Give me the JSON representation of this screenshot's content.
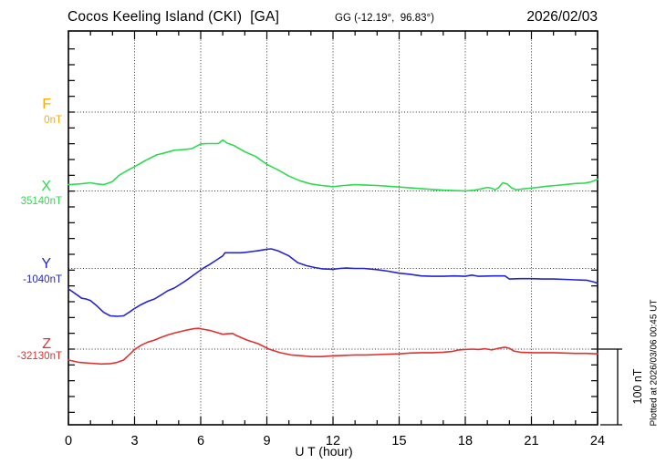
{
  "header": {
    "station_title": "Cocos Keeling Island (CKI)  [GA]",
    "gg_coordinates": "GG (-12.19°,  96.83°)",
    "date": "2026/02/03"
  },
  "x_axis": {
    "label": "U T (hour)",
    "tick_labels": [
      "0",
      "3",
      "6",
      "9",
      "12",
      "15",
      "18",
      "21",
      "24"
    ]
  },
  "scale_bar": {
    "label": "100 nT"
  },
  "plotted_at_note": "Plotted at 2026/03/06 00:45 UT",
  "chart_data": {
    "type": "line",
    "title": "Cocos Keeling Island (CKI)  [GA]",
    "date": "2026/02/03",
    "xlabel": "U T (hour)",
    "x_range": [
      0,
      24
    ],
    "x_tick_step_hours": 3,
    "y_scale": "100 nT per division",
    "grid": "dotted horizontal baseline per component, dotted vertical line every 3 hours",
    "series": [
      {
        "component": "F",
        "baseline_value": "0nT",
        "color": "#FFAA00",
        "points_delta_nT": []
      },
      {
        "component": "X",
        "baseline_value": "35140nT",
        "color": "#2EDB50",
        "points_delta_nT": [
          [
            0,
            8
          ],
          [
            0.5,
            9
          ],
          [
            1,
            10.5
          ],
          [
            1.3,
            9
          ],
          [
            1.6,
            8
          ],
          [
            2,
            12
          ],
          [
            2.3,
            20
          ],
          [
            2.6,
            25
          ],
          [
            3,
            31
          ],
          [
            3.5,
            39
          ],
          [
            4,
            46
          ],
          [
            4.3,
            48
          ],
          [
            4.8,
            52
          ],
          [
            5.3,
            53
          ],
          [
            5.6,
            54
          ],
          [
            6,
            60
          ],
          [
            6.3,
            60.5
          ],
          [
            6.8,
            60.5
          ],
          [
            7,
            65
          ],
          [
            7.2,
            61
          ],
          [
            7.5,
            58
          ],
          [
            8,
            50
          ],
          [
            8.5,
            44
          ],
          [
            9,
            34
          ],
          [
            9.5,
            27
          ],
          [
            10,
            19
          ],
          [
            10.5,
            13
          ],
          [
            11,
            9
          ],
          [
            11.5,
            7
          ],
          [
            12,
            5.5
          ],
          [
            12.5,
            7
          ],
          [
            13,
            8
          ],
          [
            13.5,
            7.5
          ],
          [
            14,
            7
          ],
          [
            14.5,
            6
          ],
          [
            15,
            5
          ],
          [
            15.5,
            4
          ],
          [
            16,
            3
          ],
          [
            16.5,
            2
          ],
          [
            17,
            1
          ],
          [
            17.5,
            0.5
          ],
          [
            18,
            0
          ],
          [
            18.4,
            1
          ],
          [
            18.7,
            2.5
          ],
          [
            19,
            4.5
          ],
          [
            19.2,
            3.5
          ],
          [
            19.35,
            1.5
          ],
          [
            19.5,
            4
          ],
          [
            19.7,
            10.5
          ],
          [
            19.9,
            9
          ],
          [
            20.1,
            4
          ],
          [
            20.3,
            1.5
          ],
          [
            20.6,
            2.5
          ],
          [
            20.9,
            3.5
          ],
          [
            21.3,
            4.5
          ],
          [
            21.7,
            6
          ],
          [
            22.1,
            7
          ],
          [
            22.5,
            8
          ],
          [
            23,
            9.5
          ],
          [
            23.4,
            10
          ],
          [
            23.7,
            11.5
          ],
          [
            24,
            15
          ]
        ]
      },
      {
        "component": "Y",
        "baseline_value": "-1040nT",
        "color": "#2424CE",
        "points_delta_nT": [
          [
            0,
            -26
          ],
          [
            0.4,
            -34
          ],
          [
            0.6,
            -38
          ],
          [
            0.8,
            -39
          ],
          [
            1,
            -41
          ],
          [
            1.3,
            -48
          ],
          [
            1.6,
            -56
          ],
          [
            1.9,
            -60.5
          ],
          [
            2.2,
            -61
          ],
          [
            2.5,
            -60.5
          ],
          [
            2.8,
            -55
          ],
          [
            3,
            -51
          ],
          [
            3.3,
            -46
          ],
          [
            3.6,
            -42
          ],
          [
            3.9,
            -39
          ],
          [
            4.2,
            -34
          ],
          [
            4.5,
            -28.5
          ],
          [
            4.8,
            -25
          ],
          [
            5,
            -21.5
          ],
          [
            5.3,
            -16
          ],
          [
            5.6,
            -10
          ],
          [
            5.9,
            -4
          ],
          [
            6.1,
            0
          ],
          [
            6.4,
            5
          ],
          [
            6.7,
            10.5
          ],
          [
            7,
            16
          ],
          [
            7.1,
            20
          ],
          [
            7.4,
            20
          ],
          [
            7.8,
            20
          ],
          [
            8,
            20.5
          ],
          [
            8.3,
            21.5
          ],
          [
            8.6,
            22.5
          ],
          [
            9,
            24.5
          ],
          [
            9.2,
            25
          ],
          [
            9.5,
            22.5
          ],
          [
            10,
            16
          ],
          [
            10.4,
            7.5
          ],
          [
            10.8,
            3.5
          ],
          [
            11.2,
            1
          ],
          [
            11.5,
            -0.5
          ],
          [
            12,
            -1
          ],
          [
            12.3,
            0
          ],
          [
            12.6,
            0.5
          ],
          [
            13,
            0
          ],
          [
            13.4,
            0
          ],
          [
            14,
            -1.5
          ],
          [
            14.5,
            -3.5
          ],
          [
            15,
            -6
          ],
          [
            15.5,
            -7.5
          ],
          [
            16,
            -9.5
          ],
          [
            16.5,
            -10
          ],
          [
            17,
            -10
          ],
          [
            17.5,
            -9.5
          ],
          [
            18,
            -10
          ],
          [
            18.3,
            -8.5
          ],
          [
            18.6,
            -10
          ],
          [
            19.3,
            -9.5
          ],
          [
            19.8,
            -9.5
          ],
          [
            20,
            -13.5
          ],
          [
            20.5,
            -13
          ],
          [
            21,
            -13
          ],
          [
            21.5,
            -13.5
          ],
          [
            22,
            -13.5
          ],
          [
            22.5,
            -14
          ],
          [
            23,
            -14.5
          ],
          [
            23.5,
            -15
          ],
          [
            23.8,
            -17
          ],
          [
            24,
            -19
          ]
        ]
      },
      {
        "component": "Z",
        "baseline_value": "-32130nT",
        "color": "#E03131",
        "points_delta_nT": [
          [
            0,
            -14
          ],
          [
            0.5,
            -17
          ],
          [
            1,
            -18
          ],
          [
            1.5,
            -19
          ],
          [
            1.9,
            -18.5
          ],
          [
            2.2,
            -17
          ],
          [
            2.5,
            -14
          ],
          [
            2.8,
            -6
          ],
          [
            3,
            -0.5
          ],
          [
            3.3,
            5
          ],
          [
            3.6,
            9
          ],
          [
            3.9,
            11.5
          ],
          [
            4.2,
            15
          ],
          [
            4.5,
            18
          ],
          [
            4.8,
            20.5
          ],
          [
            5.1,
            22.5
          ],
          [
            5.4,
            24.5
          ],
          [
            5.7,
            26
          ],
          [
            5.9,
            26.5
          ],
          [
            6.1,
            25.5
          ],
          [
            6.4,
            24
          ],
          [
            6.7,
            21.5
          ],
          [
            7,
            19
          ],
          [
            7.2,
            19.5
          ],
          [
            7.45,
            20
          ],
          [
            7.6,
            17.5
          ],
          [
            8.1,
            11.5
          ],
          [
            8.6,
            7
          ],
          [
            9.1,
            0
          ],
          [
            9.6,
            -4.5
          ],
          [
            10.1,
            -7.5
          ],
          [
            10.6,
            -8.5
          ],
          [
            11,
            -9.5
          ],
          [
            11.5,
            -9.5
          ],
          [
            12,
            -8.5
          ],
          [
            12.5,
            -8
          ],
          [
            13,
            -7.5
          ],
          [
            13.5,
            -7.5
          ],
          [
            14,
            -7
          ],
          [
            14.5,
            -6.5
          ],
          [
            15,
            -6
          ],
          [
            15.5,
            -5
          ],
          [
            16,
            -4.5
          ],
          [
            16.5,
            -4.5
          ],
          [
            17,
            -4
          ],
          [
            17.4,
            -3
          ],
          [
            17.7,
            -1
          ],
          [
            18,
            -0.5
          ],
          [
            18.3,
            0
          ],
          [
            18.6,
            -0.5
          ],
          [
            18.9,
            0.5
          ],
          [
            19.2,
            -1
          ],
          [
            19.5,
            1
          ],
          [
            19.8,
            2.5
          ],
          [
            20,
            1
          ],
          [
            20.2,
            -2.5
          ],
          [
            20.5,
            -4
          ],
          [
            21,
            -4.5
          ],
          [
            21.5,
            -4.5
          ],
          [
            22,
            -4.5
          ],
          [
            22.5,
            -5
          ],
          [
            23,
            -5.5
          ],
          [
            23.5,
            -5.5
          ],
          [
            24,
            -6
          ]
        ]
      }
    ]
  }
}
